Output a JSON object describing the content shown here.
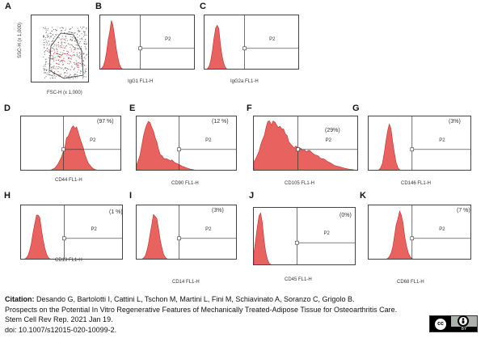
{
  "panels": [
    {
      "id": "A",
      "letter": "A",
      "type": "scatter",
      "xlabel": "FSC-H",
      "xlabel_unit": "(x 1,000)",
      "ylabel": "SSC-H (x 1,000)",
      "gate_label": "",
      "pct": ""
    },
    {
      "id": "B",
      "letter": "B",
      "type": "histogram",
      "xlabel": "IgG1 FL1-H",
      "gate_label": "P2",
      "pct": "",
      "peak": 0.12,
      "width": 0.055,
      "tail": 0.0
    },
    {
      "id": "C",
      "letter": "C",
      "type": "histogram",
      "xlabel": "IgG2a FL1-H",
      "gate_label": "P2",
      "pct": "",
      "peak": 0.13,
      "width": 0.05,
      "tail": 0.0
    },
    {
      "id": "D",
      "letter": "D",
      "type": "histogram",
      "xlabel": "CD44 FL1-H",
      "gate_label": "P2",
      "pct": "(97 %)",
      "peak": 0.52,
      "width": 0.11,
      "tail": 0.0
    },
    {
      "id": "E",
      "letter": "E",
      "type": "histogram",
      "xlabel": "CD90 FL1-H",
      "gate_label": "P2",
      "pct": "(12 %)",
      "peak": 0.12,
      "width": 0.08,
      "tail": 0.25
    },
    {
      "id": "F",
      "letter": "F",
      "type": "histogram",
      "xlabel": "CD105 FL1-H",
      "gate_label": "P2",
      "pct": "(29%)",
      "peak": 0.18,
      "width": 0.13,
      "tail": 0.45
    },
    {
      "id": "G",
      "letter": "G",
      "type": "histogram",
      "xlabel": "CD146 FL1-H",
      "gate_label": "P2",
      "pct": "(3%)",
      "peak": 0.2,
      "width": 0.05,
      "tail": 0.0
    },
    {
      "id": "H",
      "letter": "H",
      "type": "histogram",
      "xlabel": "CD13 FL1-H",
      "gate_label": "P2",
      "pct": "(1 %)",
      "peak": 0.16,
      "width": 0.06,
      "tail": 0.0
    },
    {
      "id": "I",
      "letter": "I",
      "type": "histogram",
      "xlabel": "CD14 FL1-H",
      "gate_label": "P2",
      "pct": "(3%)",
      "peak": 0.18,
      "width": 0.06,
      "tail": 0.0
    },
    {
      "id": "J",
      "letter": "J",
      "type": "histogram",
      "xlabel": "CD45 FL1-H",
      "gate_label": "P2",
      "pct": "(0%)",
      "peak": 0.06,
      "width": 0.05,
      "tail": 0.0
    },
    {
      "id": "K",
      "letter": "K",
      "type": "histogram",
      "xlabel": "CD68 FL1-H",
      "gate_label": "P2",
      "pct": "(7 %)",
      "peak": 0.3,
      "width": 0.06,
      "tail": 0.0
    }
  ],
  "chart_data": [
    {
      "type": "scatter",
      "panel": "A",
      "xlabel": "FSC-H (x 1,000)",
      "ylabel": "SSC-H (x 1,000)",
      "description_points": "dense red population with gated polygon"
    },
    {
      "type": "area",
      "panel": "B",
      "xlabel": "IgG1 FL1-H",
      "gate": "P2",
      "percent": null
    },
    {
      "type": "area",
      "panel": "C",
      "xlabel": "IgG2a FL1-H",
      "gate": "P2",
      "percent": null
    },
    {
      "type": "area",
      "panel": "D",
      "xlabel": "CD44 FL1-H",
      "gate": "P2",
      "percent": 97
    },
    {
      "type": "area",
      "panel": "E",
      "xlabel": "CD90 FL1-H",
      "gate": "P2",
      "percent": 12
    },
    {
      "type": "area",
      "panel": "F",
      "xlabel": "CD105 FL1-H",
      "gate": "P2",
      "percent": 29
    },
    {
      "type": "area",
      "panel": "G",
      "xlabel": "CD146 FL1-H",
      "gate": "P2",
      "percent": 3
    },
    {
      "type": "area",
      "panel": "H",
      "xlabel": "CD13 FL1-H",
      "gate": "P2",
      "percent": 1
    },
    {
      "type": "area",
      "panel": "I",
      "xlabel": "CD14 FL1-H",
      "gate": "P2",
      "percent": 3
    },
    {
      "type": "area",
      "panel": "J",
      "xlabel": "CD45 FL1-H",
      "gate": "P2",
      "percent": 0
    },
    {
      "type": "area",
      "panel": "K",
      "xlabel": "CD68 FL1-H",
      "gate": "P2",
      "percent": 7
    }
  ],
  "citation": {
    "label": "Citation:",
    "authors": " Desando G, Bartolotti I, Cattini L, Tschon M, Martini L, Fini M, Schiavinato A, Soranzo C, Grigolo B.",
    "title": "Prospects on the Potential In Vitro Regenerative Features of Mechanically Treated-Adipose Tissue for Osteoarthritis Care.",
    "journal": "Stem Cell Rev Rep. 2021 Jan 19.",
    "doi": "doi: 10.1007/s12015-020-10099-2."
  },
  "license": {
    "cc": "cc",
    "by_icon": "person",
    "by_label": "BY"
  },
  "colors": {
    "fill": "#e8625f",
    "edge": "#c0302e",
    "scatter": "#d8242a",
    "axis": "#444444"
  }
}
